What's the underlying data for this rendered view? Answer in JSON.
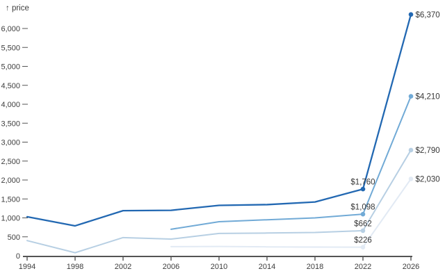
{
  "chart": {
    "axis_label": "↑ price"
  },
  "chart_data": {
    "type": "line",
    "title": "",
    "xlabel": "",
    "ylabel": "price",
    "xlim": [
      1994,
      2026
    ],
    "ylim": [
      0,
      6500
    ],
    "grid": false,
    "legend": "none",
    "x_ticks": [
      {
        "v": 1994,
        "label": "1994"
      },
      {
        "v": 1998,
        "label": "1998"
      },
      {
        "v": 2002,
        "label": "2002"
      },
      {
        "v": 2006,
        "label": "2006"
      },
      {
        "v": 2010,
        "label": "2010"
      },
      {
        "v": 2014,
        "label": "2014"
      },
      {
        "v": 2018,
        "label": "2018"
      },
      {
        "v": 2022,
        "label": "2022"
      },
      {
        "v": 2026,
        "label": "2026"
      }
    ],
    "y_ticks": [
      {
        "v": 0,
        "label": "0"
      },
      {
        "v": 500,
        "label": "500"
      },
      {
        "v": 1000,
        "label": "1,000"
      },
      {
        "v": 1500,
        "label": "1,500"
      },
      {
        "v": 2000,
        "label": "2,000"
      },
      {
        "v": 2500,
        "label": "2,500"
      },
      {
        "v": 3000,
        "label": "3,000"
      },
      {
        "v": 3500,
        "label": "3,500"
      },
      {
        "v": 4000,
        "label": "4,000"
      },
      {
        "v": 4500,
        "label": "4,500"
      },
      {
        "v": 5000,
        "label": "5,000"
      },
      {
        "v": 5500,
        "label": "5,500"
      },
      {
        "v": 6000,
        "label": "6,000"
      }
    ],
    "series": [
      {
        "name": "series-4-palest-blue",
        "color": "#e2eaf4",
        "width": 2,
        "points": [
          {
            "x": 2006,
            "y": 240
          },
          {
            "x": 2010,
            "y": 245
          },
          {
            "x": 2014,
            "y": 235
          },
          {
            "x": 2018,
            "y": 230
          },
          {
            "x": 2022,
            "y": 226
          },
          {
            "x": 2026,
            "y": 2030
          }
        ],
        "annotations": [
          {
            "x": 2022,
            "y": 226,
            "label": "$226",
            "position": "above"
          },
          {
            "x": 2026,
            "y": 2030,
            "label": "$2,030",
            "position": "right"
          }
        ]
      },
      {
        "name": "series-3-light-blue",
        "color": "#b7cfe3",
        "width": 2,
        "points": [
          {
            "x": 1994,
            "y": 400
          },
          {
            "x": 1998,
            "y": 80
          },
          {
            "x": 2002,
            "y": 480
          },
          {
            "x": 2006,
            "y": 440
          },
          {
            "x": 2010,
            "y": 590
          },
          {
            "x": 2014,
            "y": 600
          },
          {
            "x": 2018,
            "y": 615
          },
          {
            "x": 2022,
            "y": 662
          },
          {
            "x": 2026,
            "y": 2790
          }
        ],
        "annotations": [
          {
            "x": 2022,
            "y": 662,
            "label": "$662",
            "position": "above"
          },
          {
            "x": 2026,
            "y": 2790,
            "label": "$2,790",
            "position": "right"
          }
        ]
      },
      {
        "name": "series-2-medium-blue",
        "color": "#71aad6",
        "width": 2,
        "points": [
          {
            "x": 2006,
            "y": 700
          },
          {
            "x": 2010,
            "y": 900
          },
          {
            "x": 2014,
            "y": 950
          },
          {
            "x": 2018,
            "y": 1000
          },
          {
            "x": 2022,
            "y": 1098
          },
          {
            "x": 2026,
            "y": 4210
          }
        ],
        "annotations": [
          {
            "x": 2022,
            "y": 1098,
            "label": "$1,098",
            "position": "above"
          },
          {
            "x": 2026,
            "y": 4210,
            "label": "$4,210",
            "position": "right"
          }
        ]
      },
      {
        "name": "series-1-dark-blue",
        "color": "#2268b2",
        "width": 2.3,
        "points": [
          {
            "x": 1994,
            "y": 1030
          },
          {
            "x": 1998,
            "y": 790
          },
          {
            "x": 2002,
            "y": 1190
          },
          {
            "x": 2006,
            "y": 1200
          },
          {
            "x": 2010,
            "y": 1330
          },
          {
            "x": 2014,
            "y": 1350
          },
          {
            "x": 2018,
            "y": 1420
          },
          {
            "x": 2022,
            "y": 1760
          },
          {
            "x": 2026,
            "y": 6370
          }
        ],
        "annotations": [
          {
            "x": 2022,
            "y": 1760,
            "label": "$1,760",
            "position": "above"
          },
          {
            "x": 2026,
            "y": 6370,
            "label": "$6,370",
            "position": "right"
          }
        ]
      }
    ],
    "colors": {
      "axis": "#545454",
      "tick_text": "#3d3d3d",
      "annotation_text": "#363636"
    }
  }
}
